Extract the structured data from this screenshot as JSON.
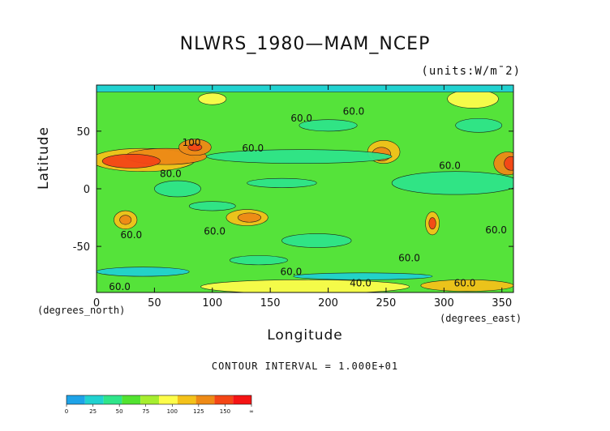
{
  "title": "NLWRS_1980—MAM_NCEP",
  "units": "(units:W/m¯2)",
  "xlabel": "Longitude",
  "ylabel": "Latitude",
  "x_unit_note": "(degrees_east)",
  "y_unit_note": "(degrees_north)",
  "contour_note": "CONTOUR INTERVAL = 1.000E+01",
  "colors": {
    "levels": [
      "#1ea3e8",
      "#21d2d0",
      "#2fe58a",
      "#52e330",
      "#a6ee2f",
      "#fdfd4a",
      "#f4c21a",
      "#ee8a16",
      "#f44616",
      "#f51414"
    ],
    "background": "#55e33a"
  },
  "chart_data": {
    "type": "heatmap",
    "subtype": "filled contour map",
    "x_range": [
      0,
      360
    ],
    "y_range": [
      -90,
      90
    ],
    "x_ticks": [
      0,
      50,
      100,
      150,
      200,
      250,
      300,
      350
    ],
    "y_ticks": [
      50,
      0,
      -50
    ],
    "contour_interval": 10,
    "contour_labels": [
      {
        "lon": 222,
        "lat": 67,
        "text": "60.0"
      },
      {
        "lon": 177,
        "lat": 61,
        "text": "60.0"
      },
      {
        "lon": 82,
        "lat": 40,
        "text": "100"
      },
      {
        "lon": 135,
        "lat": 35,
        "text": "60.0"
      },
      {
        "lon": 64,
        "lat": 13,
        "text": "80.0"
      },
      {
        "lon": 305,
        "lat": 20,
        "text": "60.0"
      },
      {
        "lon": 102,
        "lat": -37,
        "text": "60.0"
      },
      {
        "lon": 345,
        "lat": -36,
        "text": "60.0"
      },
      {
        "lon": 30,
        "lat": -40,
        "text": "60.0"
      },
      {
        "lon": 270,
        "lat": -60,
        "text": "60.0"
      },
      {
        "lon": 168,
        "lat": -72,
        "text": "60.0"
      },
      {
        "lon": 20,
        "lat": -85,
        "text": "60.0"
      },
      {
        "lon": 228,
        "lat": -82,
        "text": "40.0"
      },
      {
        "lon": 318,
        "lat": -82,
        "text": "60.0"
      }
    ],
    "colorbar": {
      "ticks": [
        "0",
        "25",
        "50",
        "75",
        "100",
        "125",
        "150",
        "∞"
      ],
      "bins": [
        0,
        12.5,
        25,
        37.5,
        50,
        62.5,
        75,
        87.5,
        100,
        112.5,
        125,
        137.5,
        150
      ]
    }
  }
}
